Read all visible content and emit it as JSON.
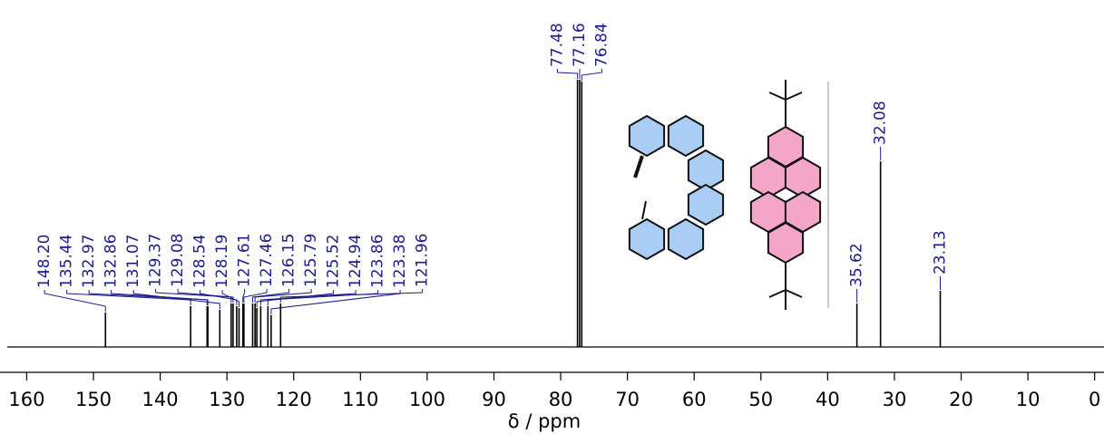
{
  "chart_data": {
    "type": "nmr",
    "x_label": "δ / ppm",
    "x": [
      148.2,
      135.44,
      132.97,
      132.86,
      131.07,
      129.37,
      129.08,
      128.54,
      128.19,
      127.61,
      127.46,
      126.15,
      125.79,
      125.52,
      124.94,
      123.86,
      123.38,
      121.96,
      77.48,
      77.16,
      76.84,
      35.62,
      32.08,
      23.13
    ],
    "x_labels": [
      "148.20",
      "135.44",
      "132.97",
      "132.86",
      "131.07",
      "129.37",
      "129.08",
      "128.54",
      "128.19",
      "127.61",
      "127.46",
      "126.15",
      "125.79",
      "125.52",
      "124.94",
      "123.86",
      "123.38",
      "121.96",
      "77.48",
      "77.16",
      "76.84",
      "35.62",
      "32.08",
      "23.13"
    ],
    "values": [
      38,
      45,
      45,
      45,
      41,
      48,
      48,
      45,
      43,
      48,
      48,
      48,
      48,
      43,
      45,
      45,
      35,
      48,
      295,
      295,
      293,
      48,
      205,
      62
    ],
    "color": "#000000",
    "label_color": "#1c1c8c",
    "xlim": [
      164,
      -1.4
    ],
    "ylim": [
      0,
      300
    ],
    "xticks": [
      160,
      150,
      140,
      130,
      120,
      110,
      100,
      90,
      80,
      70,
      60,
      50,
      40,
      30,
      20,
      10,
      0
    ]
  }
}
